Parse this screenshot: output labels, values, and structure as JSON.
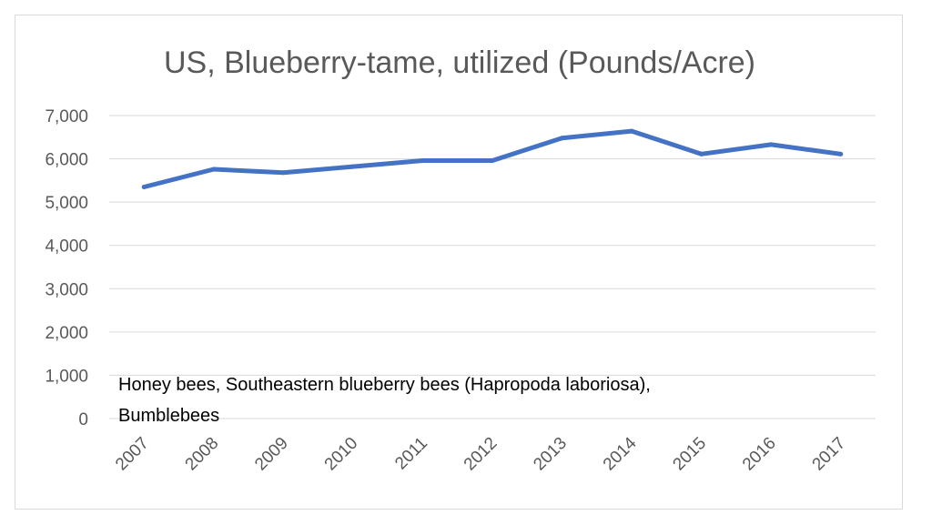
{
  "chart_data": {
    "type": "line",
    "title": "US, Blueberry-tame, utilized (Pounds/Acre)",
    "xlabel": "",
    "ylabel": "",
    "categories": [
      "2007",
      "2008",
      "2009",
      "2010",
      "2011",
      "2012",
      "2013",
      "2014",
      "2015",
      "2016",
      "2017"
    ],
    "series": [
      {
        "values": [
          5350,
          5760,
          5680,
          5820,
          5960,
          5960,
          6480,
          6640,
          6110,
          6330,
          6110
        ]
      }
    ],
    "y_ticks": [
      "0",
      "1,000",
      "2,000",
      "3,000",
      "4,000",
      "5,000",
      "6,000",
      "7,000"
    ],
    "ylim": [
      0,
      7000
    ],
    "grid": "horizontal",
    "legend": "none",
    "annotation_lines": [
      "Honey bees, Southeastern blueberry bees (Hapropoda laboriosa),",
      "Bumblebees"
    ],
    "colors": {
      "line": "#4472C4",
      "grid": "#d9d9d9",
      "text": "#595959",
      "border": "#d9d9d9"
    }
  }
}
